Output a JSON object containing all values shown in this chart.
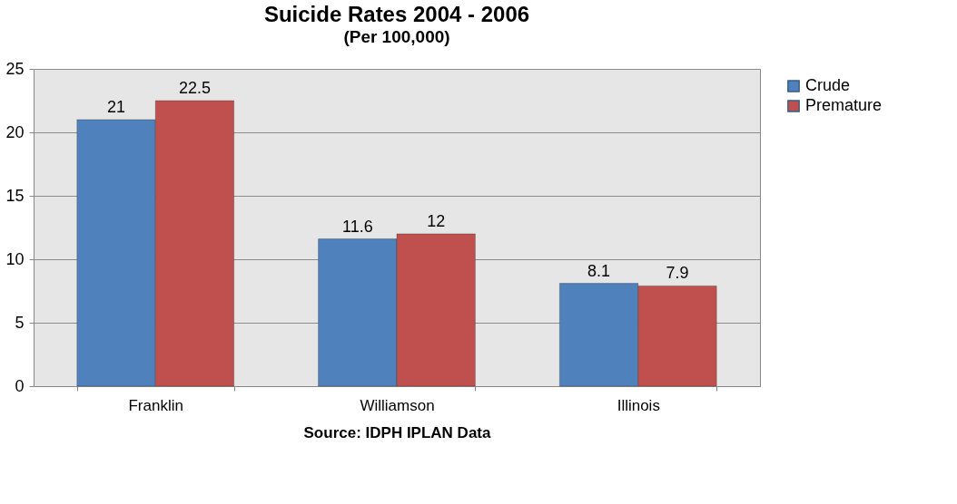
{
  "chart_data": {
    "type": "bar",
    "title": "Suicide Rates 2004 - 2006",
    "subtitle": "(Per 100,000)",
    "annotations": [
      "Source: IDPH IPLAN Data"
    ],
    "categories": [
      "Franklin",
      "Williamson",
      "Illinois"
    ],
    "series": [
      {
        "name": "Crude",
        "color": "#4f81bd",
        "values": [
          21,
          11.6,
          8.1
        ]
      },
      {
        "name": "Premature",
        "color": "#c0504d",
        "values": [
          22.5,
          12,
          7.9
        ]
      }
    ],
    "ylim": [
      0,
      25
    ],
    "yticks": [
      0,
      5,
      10,
      15,
      20,
      25
    ],
    "grid": "y",
    "legend": "right",
    "data_labels": true
  }
}
